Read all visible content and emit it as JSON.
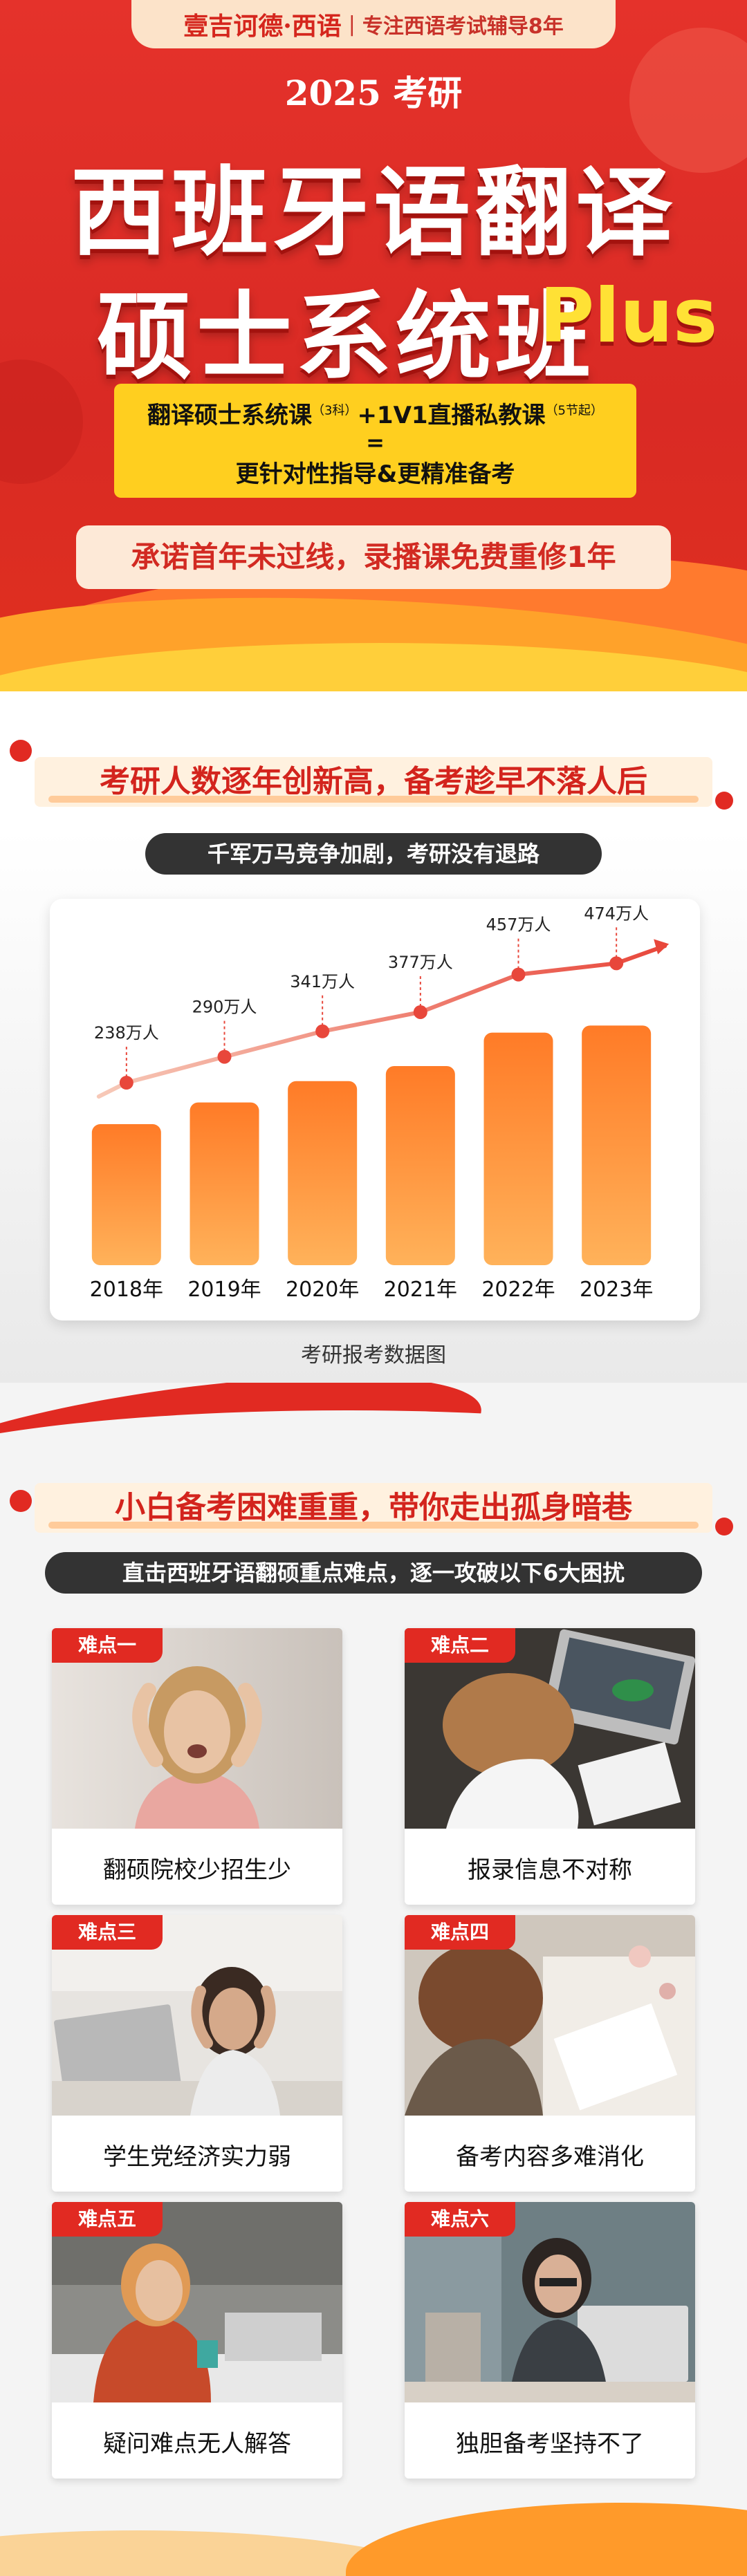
{
  "hero": {
    "logo": "壹吉诃德·西语",
    "separator": "|",
    "slogan": "专注西语考试辅导8年",
    "year_title": "2025 考研",
    "title_line1": "西班牙语翻译",
    "title_line2": "硕士系统班",
    "title_plus": "Plus",
    "offer_part1": "翻译硕士系统课",
    "offer_part1_note": "（3科）",
    "offer_part2": "+1V1直播私教课",
    "offer_part2_note": "（5节起）",
    "offer_equals": "=",
    "offer_line3": "更针对性指导&更精准备考",
    "promise": "承诺首年未过线，录播课免费重修1年"
  },
  "section1": {
    "headline": "考研人数逐年创新高，备考趁早不落人后",
    "pill": "千军万马竞争加剧，考研没有退路",
    "caption": "考研报考数据图"
  },
  "chart_data": {
    "type": "bar",
    "categories": [
      "2018年",
      "2019年",
      "2020年",
      "2021年",
      "2022年",
      "2023年"
    ],
    "values": [
      238,
      290,
      341,
      377,
      457,
      474
    ],
    "value_labels": [
      "238万人",
      "290万人",
      "341万人",
      "377万人",
      "457万人",
      "474万人"
    ],
    "ylim": [
      0,
      500
    ],
    "grid": false,
    "bar_color": "#ff8a2a",
    "trend_color": "#e8473b"
  },
  "section2": {
    "headline": "小白备考困难重重，带你走出孤身暗巷",
    "pill": "直击西班牙语翻硕重点难点，逐一攻破以下6大困扰",
    "cards": [
      {
        "tag": "难点一",
        "caption": "翻硕院校少招生少"
      },
      {
        "tag": "难点二",
        "caption": "报录信息不对称"
      },
      {
        "tag": "难点三",
        "caption": "学生党经济实力弱"
      },
      {
        "tag": "难点四",
        "caption": "备考内容多难消化"
      },
      {
        "tag": "难点五",
        "caption": "疑问难点无人解答"
      },
      {
        "tag": "难点六",
        "caption": "独胆备考坚持不了"
      }
    ]
  },
  "colors": {
    "brand_red": "#e12a22",
    "accent_yellow": "#ffcf1f",
    "accent_orange": "#ff8a2a"
  }
}
